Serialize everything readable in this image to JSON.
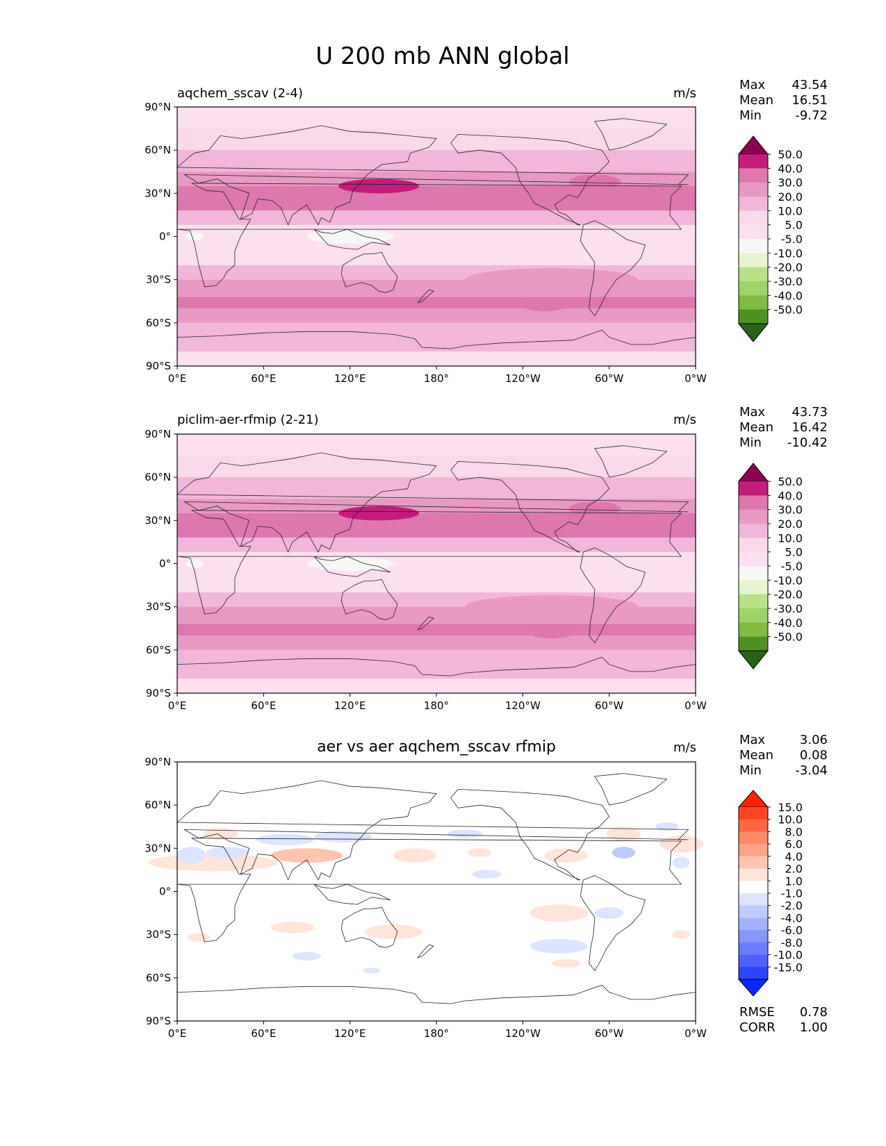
{
  "figure_title": "U 200 mb ANN global",
  "colors": {
    "test_palette": [
      "#8e0152",
      "#c51b7d",
      "#de77ae",
      "#e899c4",
      "#f1b6da",
      "#f9d9ea",
      "#fde0ef",
      "#f7f7f7",
      "#e6f5d0",
      "#b8e186",
      "#9ed36a",
      "#7fbc41",
      "#4d9221",
      "#276419"
    ],
    "diff_palette": [
      "#ff2200",
      "#ff4422",
      "#ff6644",
      "#ff8866",
      "#ffa388",
      "#ffc4b0",
      "#ffe4da",
      "#ffffff",
      "#dde4ff",
      "#bfcbff",
      "#a3b2ff",
      "#8597ff",
      "#6b7dff",
      "#4d62ff",
      "#2b44ff",
      "#0a28ff"
    ]
  },
  "chart_data": [
    {
      "type": "heatmap",
      "title": "aqchem_sscav (2-4)",
      "units": "m/s",
      "stats": [
        {
          "label": "Max",
          "value": "43.54"
        },
        {
          "label": "Mean",
          "value": "16.51"
        },
        {
          "label": "Min",
          "value": "-9.72"
        }
      ],
      "xticks": [
        "0°E",
        "60°E",
        "120°E",
        "180°",
        "120°W",
        "60°W",
        "0°W"
      ],
      "yticks": [
        "90°N",
        "60°N",
        "30°N",
        "0°",
        "30°S",
        "60°S",
        "90°S"
      ],
      "xlim": [
        0,
        360
      ],
      "ylim": [
        -90,
        90
      ],
      "colorbar_levels": [
        "50.0",
        "40.0",
        "30.0",
        "20.0",
        "10.0",
        "5.0",
        "-5.0",
        "-10.0",
        "-20.0",
        "-30.0",
        "-40.0",
        "-50.0"
      ],
      "bands": [
        {
          "lat": 90,
          "value": 0
        },
        {
          "lat": 75,
          "value": 8
        },
        {
          "lat": 60,
          "value": 14
        },
        {
          "lat": 45,
          "value": 20
        },
        {
          "lat": 35,
          "value": 34
        },
        {
          "lat": 28,
          "value": 32
        },
        {
          "lat": 18,
          "value": 12
        },
        {
          "lat": 8,
          "value": 2
        },
        {
          "lat": 0,
          "value": -2
        },
        {
          "lat": -10,
          "value": 4
        },
        {
          "lat": -20,
          "value": 14
        },
        {
          "lat": -30,
          "value": 24
        },
        {
          "lat": -42,
          "value": 32
        },
        {
          "lat": -50,
          "value": 28
        },
        {
          "lat": -60,
          "value": 18
        },
        {
          "lat": -70,
          "value": 10
        },
        {
          "lat": -80,
          "value": 4
        },
        {
          "lat": -90,
          "value": 0
        }
      ],
      "blobs": [
        {
          "lon": 140,
          "lat": 35,
          "wlon": 28,
          "wlat": 5,
          "value": 43
        },
        {
          "lon": 290,
          "lat": 38,
          "wlon": 18,
          "wlat": 5,
          "value": 38
        },
        {
          "lon": 120,
          "lat": 0,
          "wlon": 30,
          "wlat": 5,
          "value": -9
        },
        {
          "lon": 12,
          "lat": 0,
          "wlon": 6,
          "wlat": 3,
          "value": -7
        },
        {
          "lon": 260,
          "lat": -30,
          "wlon": 60,
          "wlat": 8,
          "value": 22
        },
        {
          "lon": 255,
          "lat": -48,
          "wlon": 15,
          "wlat": 4,
          "value": 38
        }
      ]
    },
    {
      "type": "heatmap",
      "title": "piclim-aer-rfmip (2-21)",
      "units": "m/s",
      "stats": [
        {
          "label": "Max",
          "value": "43.73"
        },
        {
          "label": "Mean",
          "value": "16.42"
        },
        {
          "label": "Min",
          "value": "-10.42"
        }
      ],
      "xticks": [
        "0°E",
        "60°E",
        "120°E",
        "180°",
        "120°W",
        "60°W",
        "0°W"
      ],
      "yticks": [
        "90°N",
        "60°N",
        "30°N",
        "0°",
        "30°S",
        "60°S",
        "90°S"
      ],
      "xlim": [
        0,
        360
      ],
      "ylim": [
        -90,
        90
      ],
      "colorbar_levels": [
        "50.0",
        "40.0",
        "30.0",
        "20.0",
        "10.0",
        "5.0",
        "-5.0",
        "-10.0",
        "-20.0",
        "-30.0",
        "-40.0",
        "-50.0"
      ],
      "bands": [
        {
          "lat": 90,
          "value": 0
        },
        {
          "lat": 75,
          "value": 8
        },
        {
          "lat": 60,
          "value": 14
        },
        {
          "lat": 45,
          "value": 20
        },
        {
          "lat": 35,
          "value": 34
        },
        {
          "lat": 28,
          "value": 32
        },
        {
          "lat": 18,
          "value": 12
        },
        {
          "lat": 8,
          "value": 2
        },
        {
          "lat": 0,
          "value": -2
        },
        {
          "lat": -10,
          "value": 4
        },
        {
          "lat": -20,
          "value": 14
        },
        {
          "lat": -30,
          "value": 24
        },
        {
          "lat": -42,
          "value": 32
        },
        {
          "lat": -50,
          "value": 28
        },
        {
          "lat": -60,
          "value": 18
        },
        {
          "lat": -70,
          "value": 10
        },
        {
          "lat": -80,
          "value": 4
        },
        {
          "lat": -90,
          "value": 0
        }
      ],
      "blobs": [
        {
          "lon": 140,
          "lat": 35,
          "wlon": 28,
          "wlat": 5,
          "value": 43
        },
        {
          "lon": 290,
          "lat": 38,
          "wlon": 18,
          "wlat": 5,
          "value": 38
        },
        {
          "lon": 120,
          "lat": 0,
          "wlon": 30,
          "wlat": 5,
          "value": -10
        },
        {
          "lon": 12,
          "lat": 0,
          "wlon": 6,
          "wlat": 3,
          "value": -7
        },
        {
          "lon": 260,
          "lat": -30,
          "wlon": 60,
          "wlat": 8,
          "value": 22
        },
        {
          "lon": 260,
          "lat": -48,
          "wlon": 15,
          "wlat": 4,
          "value": 38
        }
      ]
    },
    {
      "type": "heatmap",
      "title": "aer vs aer aqchem_sscav rfmip",
      "units": "m/s",
      "stats": [
        {
          "label": "Max",
          "value": "3.06"
        },
        {
          "label": "Mean",
          "value": "0.08"
        },
        {
          "label": "Min",
          "value": "-3.04"
        }
      ],
      "extra_stats": [
        {
          "label": "RMSE",
          "value": "0.78"
        },
        {
          "label": "CORR",
          "value": "1.00"
        }
      ],
      "xticks": [
        "0°E",
        "60°E",
        "120°E",
        "180°",
        "120°W",
        "60°W",
        "0°W"
      ],
      "yticks": [
        "90°N",
        "60°N",
        "30°N",
        "0°",
        "30°S",
        "60°S",
        "90°S"
      ],
      "xlim": [
        0,
        360
      ],
      "ylim": [
        -90,
        90
      ],
      "colorbar_levels": [
        "15.0",
        "10.0",
        "8.0",
        "6.0",
        "4.0",
        "2.0",
        "1.0",
        "-1.0",
        "-2.0",
        "-4.0",
        "-6.0",
        "-8.0",
        "-10.0",
        "-15.0"
      ],
      "bands": [],
      "blobs": [
        {
          "lon": 25,
          "lat": 20,
          "wlon": 45,
          "wlat": 6,
          "value": 1.5
        },
        {
          "lon": 90,
          "lat": 25,
          "wlon": 25,
          "wlat": 5,
          "value": 2.2
        },
        {
          "lon": 165,
          "lat": 25,
          "wlon": 15,
          "wlat": 5,
          "value": 1.6
        },
        {
          "lon": 210,
          "lat": 27,
          "wlon": 8,
          "wlat": 3,
          "value": 1.4
        },
        {
          "lon": 270,
          "lat": 25,
          "wlon": 15,
          "wlat": 5,
          "value": 1.8
        },
        {
          "lon": 350,
          "lat": 33,
          "wlon": 15,
          "wlat": 6,
          "value": 1.7
        },
        {
          "lon": 310,
          "lat": 40,
          "wlon": 12,
          "wlat": 5,
          "value": 1.4
        },
        {
          "lon": 30,
          "lat": 40,
          "wlon": 12,
          "wlat": 4,
          "value": 1.3
        },
        {
          "lon": 10,
          "lat": 25,
          "wlon": 10,
          "wlat": 6,
          "value": -1.5
        },
        {
          "lon": 35,
          "lat": 27,
          "wlon": 15,
          "wlat": 4,
          "value": -1.2
        },
        {
          "lon": 75,
          "lat": 36,
          "wlon": 20,
          "wlat": 4,
          "value": -1.2
        },
        {
          "lon": 115,
          "lat": 38,
          "wlon": 20,
          "wlat": 4,
          "value": -1.3
        },
        {
          "lon": 200,
          "lat": 40,
          "wlon": 12,
          "wlat": 3,
          "value": -1.2
        },
        {
          "lon": 310,
          "lat": 27,
          "wlon": 8,
          "wlat": 4,
          "value": -2.4
        },
        {
          "lon": 340,
          "lat": 45,
          "wlon": 8,
          "wlat": 3,
          "value": -1.2
        },
        {
          "lon": 350,
          "lat": 20,
          "wlon": 6,
          "wlat": 4,
          "value": -1.3
        },
        {
          "lon": 215,
          "lat": 12,
          "wlon": 10,
          "wlat": 3,
          "value": -1.1
        },
        {
          "lon": 265,
          "lat": -15,
          "wlon": 20,
          "wlat": 6,
          "value": 1.5
        },
        {
          "lon": 300,
          "lat": -15,
          "wlon": 10,
          "wlat": 4,
          "value": -1.2
        },
        {
          "lon": 80,
          "lat": -25,
          "wlon": 15,
          "wlat": 4,
          "value": 1.4
        },
        {
          "lon": 150,
          "lat": -28,
          "wlon": 20,
          "wlat": 5,
          "value": 1.4
        },
        {
          "lon": 15,
          "lat": -32,
          "wlon": 8,
          "wlat": 3,
          "value": 1.3
        },
        {
          "lon": 265,
          "lat": -38,
          "wlon": 20,
          "wlat": 5,
          "value": -1.6
        },
        {
          "lon": 90,
          "lat": -45,
          "wlon": 10,
          "wlat": 3,
          "value": -1.4
        },
        {
          "lon": 135,
          "lat": -55,
          "wlon": 6,
          "wlat": 2,
          "value": -1.1
        },
        {
          "lon": 270,
          "lat": -50,
          "wlon": 10,
          "wlat": 3,
          "value": 1.2
        },
        {
          "lon": 350,
          "lat": -30,
          "wlon": 6,
          "wlat": 3,
          "value": 1.2
        }
      ]
    }
  ]
}
